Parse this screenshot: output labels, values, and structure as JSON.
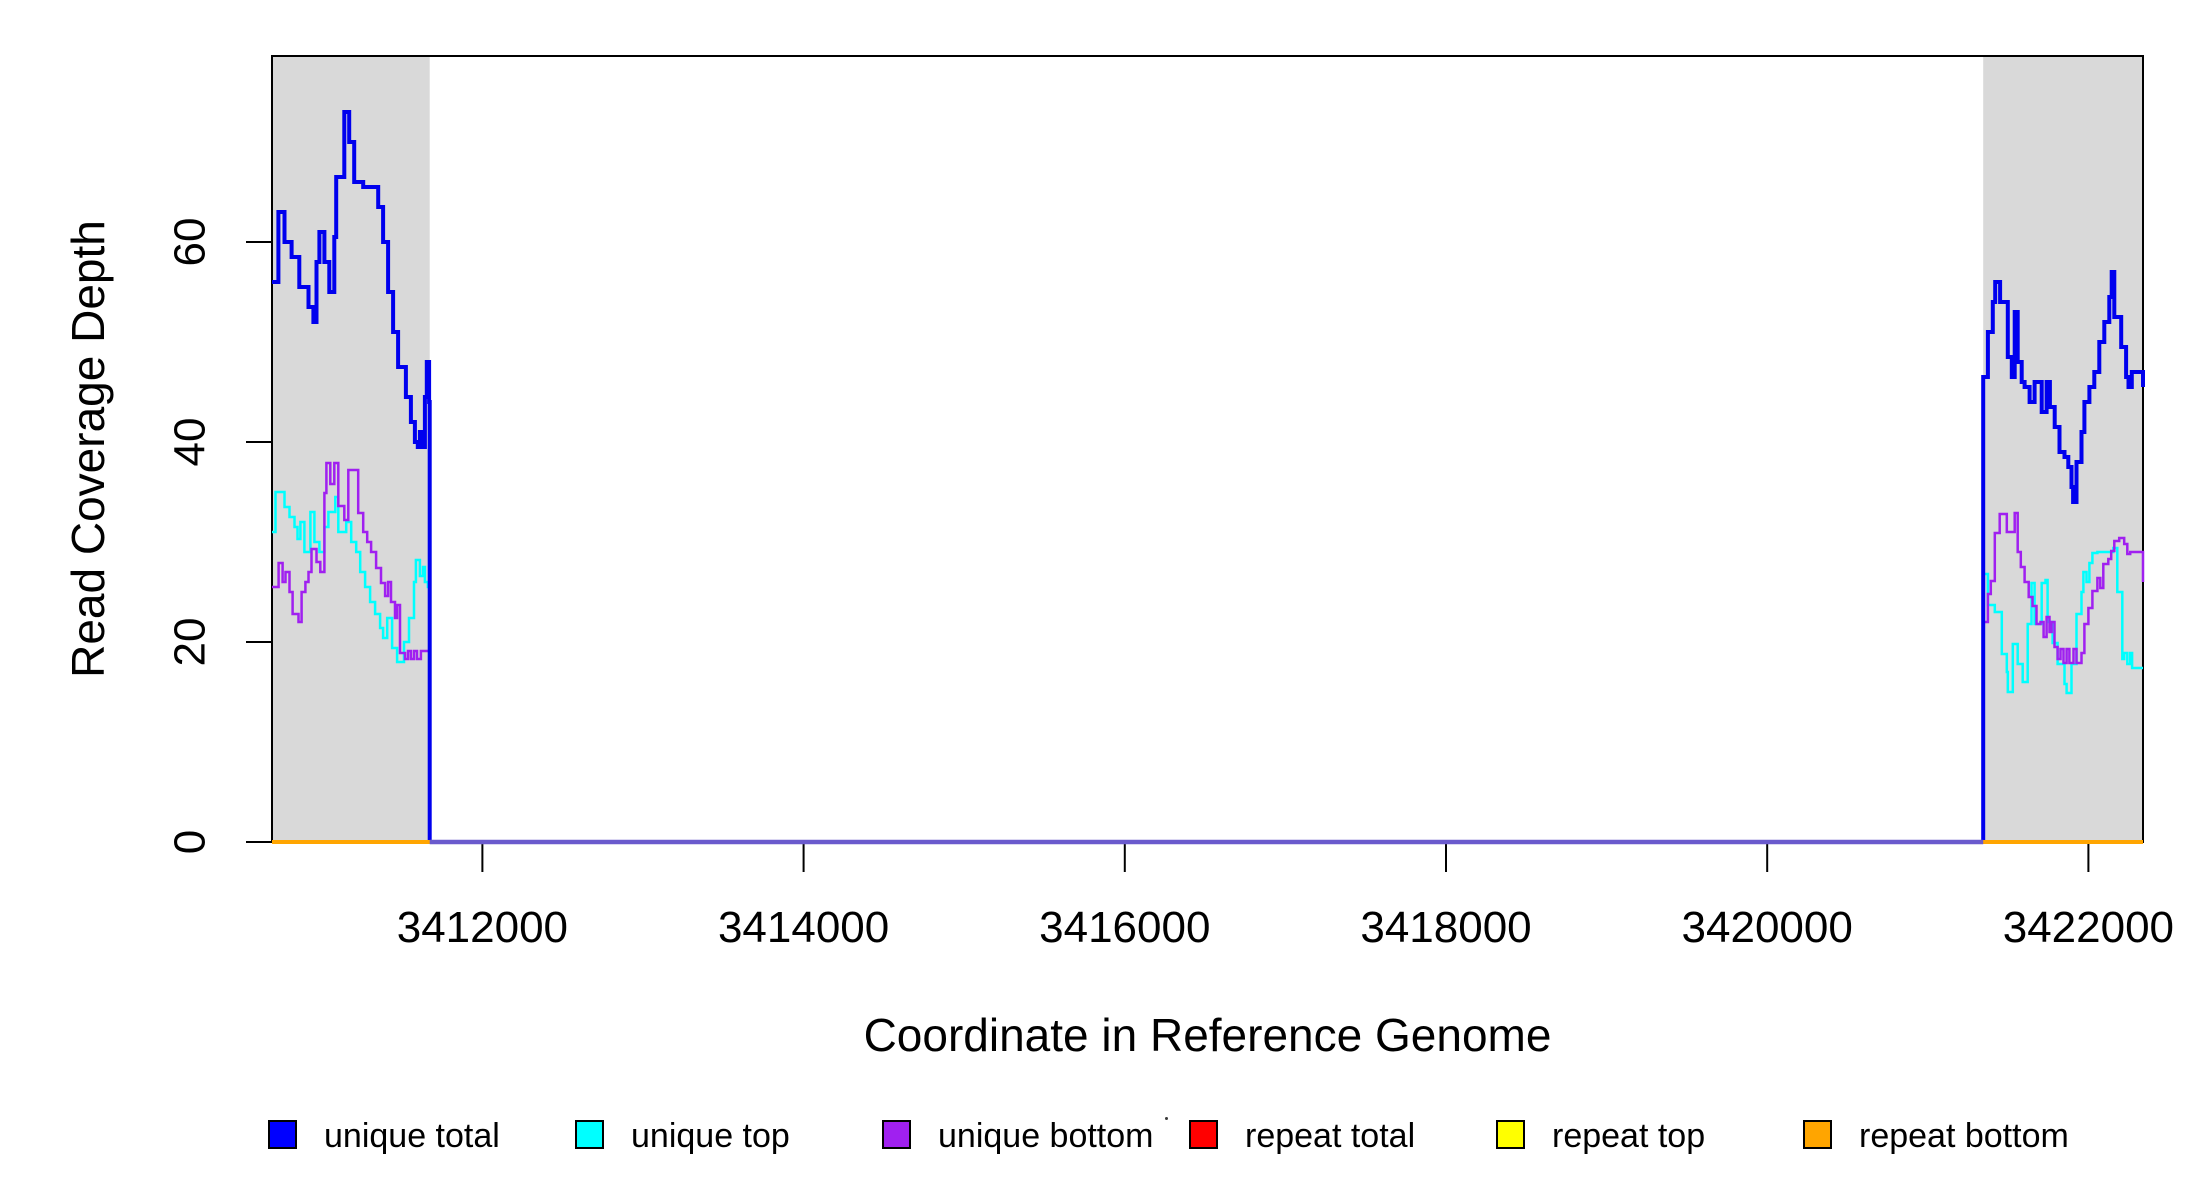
{
  "figure": {
    "background": "#FFFFFF",
    "plot_border_color": "#000000",
    "band_color": "#D9D9D9",
    "tick_color": "#000000",
    "tick_label_font_px": 44,
    "axis_title_font_px": 46
  },
  "chart_data": {
    "type": "line",
    "step": true,
    "title": "",
    "xlabel": "Coordinate in Reference Genome",
    "ylabel": "Read Coverage Depth",
    "xlim": [
      3410690,
      3422340
    ],
    "ylim": [
      0,
      78.6
    ],
    "xticks": [
      3412000,
      3414000,
      3416000,
      3418000,
      3420000,
      3422000
    ],
    "yticks": [
      0,
      20,
      40,
      60
    ],
    "grid": false,
    "legend_position": "bottom",
    "highlight_regions": [
      {
        "name": "left-grey-band",
        "x0": 3410690,
        "x1": 3411672,
        "color": "#D9D9D9"
      },
      {
        "name": "right-grey-band",
        "x0": 3421345,
        "x1": 3422340,
        "color": "#D9D9D9"
      }
    ],
    "series": [
      {
        "name": "repeat total",
        "color": "#FF0000",
        "legend_color": "#FF0000",
        "line_width": 2,
        "points": [
          [
            3410690,
            0
          ],
          [
            3422340,
            0
          ]
        ]
      },
      {
        "name": "repeat top",
        "color": "#FFFF00",
        "legend_color": "#FFFF00",
        "line_width": 2,
        "points": [
          [
            3410690,
            0
          ],
          [
            3422340,
            0
          ]
        ]
      },
      {
        "name": "unique top",
        "color": "#00FFFF",
        "legend_color": "#00FFFF",
        "line_width": 2.5,
        "points": [
          [
            3410690,
            31
          ],
          [
            3410712,
            35
          ],
          [
            3410768,
            33.5
          ],
          [
            3410799,
            32.5
          ],
          [
            3410830,
            31.5
          ],
          [
            3410849,
            30.3
          ],
          [
            3410867,
            32
          ],
          [
            3410892,
            29
          ],
          [
            3410929,
            33
          ],
          [
            3410954,
            30
          ],
          [
            3410985,
            29
          ],
          [
            3411016,
            31.5
          ],
          [
            3411041,
            33
          ],
          [
            3411084,
            34.5
          ],
          [
            3411103,
            31
          ],
          [
            3411152,
            32
          ],
          [
            3411183,
            30
          ],
          [
            3411214,
            29
          ],
          [
            3411239,
            27
          ],
          [
            3411270,
            25.5
          ],
          [
            3411301,
            24
          ],
          [
            3411332,
            22.8
          ],
          [
            3411363,
            21.4
          ],
          [
            3411382,
            20.4
          ],
          [
            3411407,
            22.4
          ],
          [
            3411438,
            19.4
          ],
          [
            3411469,
            18
          ],
          [
            3411512,
            20
          ],
          [
            3411543,
            22.4
          ],
          [
            3411574,
            26
          ],
          [
            3411586,
            28.2
          ],
          [
            3411611,
            26.6
          ],
          [
            3411630,
            27.5
          ],
          [
            3411642,
            26
          ],
          [
            3411661,
            25.5
          ],
          [
            3411672,
            0
          ],
          [
            3421345,
            26.8
          ],
          [
            3421374,
            23.7
          ],
          [
            3421417,
            23
          ],
          [
            3421461,
            18.8
          ],
          [
            3421492,
            17
          ],
          [
            3421498,
            15
          ],
          [
            3421529,
            19.8
          ],
          [
            3421560,
            17.8
          ],
          [
            3421591,
            16
          ],
          [
            3421622,
            21.8
          ],
          [
            3421646,
            25.9
          ],
          [
            3421665,
            21.8
          ],
          [
            3421709,
            25.9
          ],
          [
            3421733,
            26.2
          ],
          [
            3421746,
            22
          ],
          [
            3421777,
            19.9
          ],
          [
            3421808,
            17.8
          ],
          [
            3421851,
            15.8
          ],
          [
            3421864,
            14.9
          ],
          [
            3421895,
            17.8
          ],
          [
            3421926,
            22.8
          ],
          [
            3421957,
            25
          ],
          [
            3421969,
            27
          ],
          [
            3421988,
            26
          ],
          [
            3422006,
            27.9
          ],
          [
            3422025,
            28.9
          ],
          [
            3422056,
            29
          ],
          [
            3422130,
            29
          ],
          [
            3422155,
            29.4
          ],
          [
            3422180,
            25
          ],
          [
            3422211,
            18.3
          ],
          [
            3422223,
            18.9
          ],
          [
            3422242,
            17.8
          ],
          [
            3422260,
            18.9
          ],
          [
            3422272,
            17.4
          ],
          [
            3422340,
            17.4
          ]
        ]
      },
      {
        "name": "unique bottom",
        "color": "#A020F0",
        "legend_color": "#A020F0",
        "line_width": 2.5,
        "points": [
          [
            3410690,
            25.5
          ],
          [
            3410731,
            27.9
          ],
          [
            3410756,
            26
          ],
          [
            3410774,
            27
          ],
          [
            3410799,
            25
          ],
          [
            3410818,
            22.8
          ],
          [
            3410855,
            22
          ],
          [
            3410874,
            25
          ],
          [
            3410898,
            26
          ],
          [
            3410917,
            27
          ],
          [
            3410936,
            29.3
          ],
          [
            3410967,
            28
          ],
          [
            3410991,
            27
          ],
          [
            3411016,
            34.9
          ],
          [
            3411029,
            37.9
          ],
          [
            3411053,
            35.8
          ],
          [
            3411078,
            37.9
          ],
          [
            3411103,
            33.6
          ],
          [
            3411140,
            32.2
          ],
          [
            3411165,
            37.2
          ],
          [
            3411227,
            32.9
          ],
          [
            3411258,
            31
          ],
          [
            3411283,
            30
          ],
          [
            3411307,
            29
          ],
          [
            3411338,
            27.4
          ],
          [
            3411369,
            25.9
          ],
          [
            3411394,
            24.6
          ],
          [
            3411413,
            26
          ],
          [
            3411431,
            24
          ],
          [
            3411456,
            22.4
          ],
          [
            3411469,
            23.7
          ],
          [
            3411487,
            18.9
          ],
          [
            3411518,
            18.3
          ],
          [
            3411537,
            19.1
          ],
          [
            3411555,
            18.3
          ],
          [
            3411574,
            19.1
          ],
          [
            3411593,
            18.3
          ],
          [
            3411617,
            19.1
          ],
          [
            3411672,
            0
          ],
          [
            3421345,
            22
          ],
          [
            3421374,
            24.8
          ],
          [
            3421392,
            26.1
          ],
          [
            3421417,
            30.9
          ],
          [
            3421448,
            32.8
          ],
          [
            3421492,
            31
          ],
          [
            3421541,
            32.9
          ],
          [
            3421560,
            29
          ],
          [
            3421579,
            27.5
          ],
          [
            3421603,
            26
          ],
          [
            3421628,
            24.5
          ],
          [
            3421652,
            23.6
          ],
          [
            3421677,
            21.8
          ],
          [
            3421702,
            22
          ],
          [
            3421721,
            20.5
          ],
          [
            3421740,
            22.5
          ],
          [
            3421758,
            21
          ],
          [
            3421771,
            22
          ],
          [
            3421789,
            19.5
          ],
          [
            3421808,
            18.3
          ],
          [
            3421826,
            19.3
          ],
          [
            3421845,
            17.9
          ],
          [
            3421864,
            19.3
          ],
          [
            3421882,
            17.9
          ],
          [
            3421907,
            19.3
          ],
          [
            3421926,
            17.9
          ],
          [
            3421957,
            18.9
          ],
          [
            3421975,
            21.8
          ],
          [
            3422000,
            23.4
          ],
          [
            3422025,
            25.1
          ],
          [
            3422056,
            26.4
          ],
          [
            3422074,
            25.4
          ],
          [
            3422093,
            27.8
          ],
          [
            3422124,
            28.3
          ],
          [
            3422142,
            29.1
          ],
          [
            3422161,
            30.1
          ],
          [
            3422192,
            30.4
          ],
          [
            3422223,
            29.8
          ],
          [
            3422242,
            28.8
          ],
          [
            3422260,
            29
          ],
          [
            3422300,
            29
          ],
          [
            3422340,
            26
          ]
        ]
      },
      {
        "name": "unique total",
        "color": "#0000EE",
        "legend_color": "#0000FF",
        "line_width": 4,
        "points": [
          [
            3410690,
            56
          ],
          [
            3410730,
            63
          ],
          [
            3410768,
            60
          ],
          [
            3410812,
            58.5
          ],
          [
            3410860,
            55.5
          ],
          [
            3410917,
            53.5
          ],
          [
            3410948,
            52
          ],
          [
            3410967,
            58
          ],
          [
            3410985,
            61
          ],
          [
            3411016,
            58
          ],
          [
            3411047,
            55
          ],
          [
            3411078,
            60.5
          ],
          [
            3411090,
            66.5
          ],
          [
            3411140,
            73
          ],
          [
            3411171,
            70
          ],
          [
            3411202,
            66
          ],
          [
            3411258,
            65.5
          ],
          [
            3411351,
            63.5
          ],
          [
            3411382,
            60
          ],
          [
            3411413,
            55
          ],
          [
            3411444,
            51
          ],
          [
            3411475,
            47.5
          ],
          [
            3411524,
            44.5
          ],
          [
            3411555,
            42
          ],
          [
            3411580,
            40
          ],
          [
            3411598,
            39.5
          ],
          [
            3411611,
            41
          ],
          [
            3411623,
            39.5
          ],
          [
            3411642,
            44.5
          ],
          [
            3411654,
            48
          ],
          [
            3411668,
            44
          ],
          [
            3411672,
            0
          ],
          [
            3421345,
            46.5
          ],
          [
            3421374,
            51
          ],
          [
            3421405,
            54
          ],
          [
            3421420,
            56
          ],
          [
            3421450,
            54
          ],
          [
            3421498,
            48.5
          ],
          [
            3421523,
            46.5
          ],
          [
            3421541,
            53
          ],
          [
            3421560,
            48
          ],
          [
            3421585,
            46
          ],
          [
            3421603,
            45.5
          ],
          [
            3421634,
            44
          ],
          [
            3421665,
            46
          ],
          [
            3421709,
            43
          ],
          [
            3421740,
            46
          ],
          [
            3421760,
            43.5
          ],
          [
            3421790,
            41.5
          ],
          [
            3421820,
            39
          ],
          [
            3421851,
            38.5
          ],
          [
            3421875,
            37.5
          ],
          [
            3421895,
            35.5
          ],
          [
            3421905,
            34
          ],
          [
            3421926,
            38
          ],
          [
            3421957,
            41
          ],
          [
            3421975,
            44
          ],
          [
            3422006,
            45.5
          ],
          [
            3422037,
            47
          ],
          [
            3422068,
            50
          ],
          [
            3422099,
            52
          ],
          [
            3422130,
            54.5
          ],
          [
            3422145,
            57
          ],
          [
            3422161,
            52.5
          ],
          [
            3422204,
            49.5
          ],
          [
            3422235,
            46.5
          ],
          [
            3422250,
            45.5
          ],
          [
            3422270,
            47
          ],
          [
            3422340,
            45.5
          ]
        ]
      },
      {
        "name": "repeat bottom",
        "color": "#FFA500",
        "legend_color": "#FFA500",
        "line_width": 4,
        "points": [
          [
            3410690,
            0
          ],
          [
            3422340,
            0
          ]
        ]
      }
    ],
    "overlays": [
      {
        "name": "middle zero line",
        "color": "#6A5ACD",
        "line_width": 4.5,
        "points": [
          [
            3411672,
            0
          ],
          [
            3421345,
            0
          ]
        ]
      }
    ]
  },
  "legend": {
    "items": [
      {
        "label": "unique total",
        "color": "#0000FF"
      },
      {
        "label": "unique top",
        "color": "#00FFFF"
      },
      {
        "label": "unique bottom",
        "color": "#A020F0"
      },
      {
        "label": "repeat total",
        "color": "#FF0000"
      },
      {
        "label": "repeat top",
        "color": "#FFFF00"
      },
      {
        "label": "repeat bottom",
        "color": "#FFA500"
      }
    ]
  },
  "decorations": {
    "stray_dot": {
      "present": true
    }
  }
}
